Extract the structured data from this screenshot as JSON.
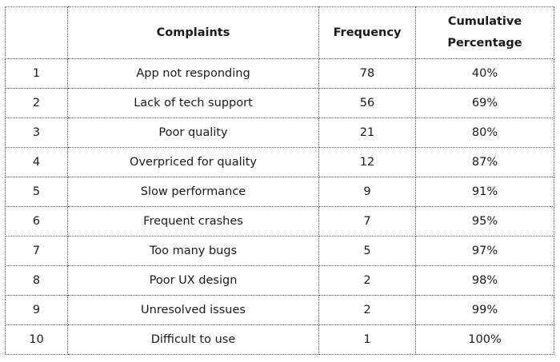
{
  "table": {
    "columns": [
      "Complaints",
      "Frequency",
      "Cumulative Percentage"
    ],
    "rows": [
      [
        "1",
        "App not responding",
        "78",
        "40%"
      ],
      [
        "2",
        "Lack of tech support",
        "56",
        "69%"
      ],
      [
        "3",
        "Poor quality",
        "21",
        "80%"
      ],
      [
        "4",
        "Overpriced for quality",
        "12",
        "87%"
      ],
      [
        "5",
        "Slow performance",
        "9",
        "91%"
      ],
      [
        "6",
        "Frequent crashes",
        "7",
        "95%"
      ],
      [
        "7",
        "Too many bugs",
        "5",
        "97%"
      ],
      [
        "8",
        "Poor UX design",
        "2",
        "98%"
      ],
      [
        "9",
        "Unresolved issues",
        "2",
        "99%"
      ],
      [
        "10",
        "Difficult to use",
        "1",
        "100%"
      ]
    ]
  }
}
